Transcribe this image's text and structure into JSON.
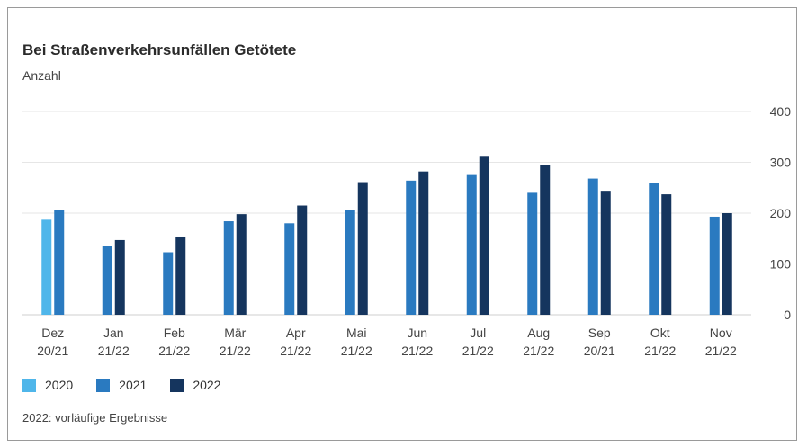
{
  "title": "Bei Straßenverkehrsunfällen Getötete",
  "subtitle": "Anzahl",
  "footnote": "2022: vorläufige Ergebnisse",
  "colors": {
    "2020": "#4fb6ea",
    "2021": "#2a7ac0",
    "2022": "#15355e"
  },
  "chart_data": {
    "type": "bar",
    "title": "Bei Straßenverkehrsunfällen Getötete",
    "ylabel": "Anzahl",
    "ylim": [
      0,
      400
    ],
    "yticks": [
      0,
      100,
      200,
      300,
      400
    ],
    "grid": true,
    "legend_position": "bottom-left",
    "categories": [
      [
        "Dez",
        "20/21"
      ],
      [
        "Jan",
        "21/22"
      ],
      [
        "Feb",
        "21/22"
      ],
      [
        "Mär",
        "21/22"
      ],
      [
        "Apr",
        "21/22"
      ],
      [
        "Mai",
        "21/22"
      ],
      [
        "Jun",
        "21/22"
      ],
      [
        "Jul",
        "21/22"
      ],
      [
        "Aug",
        "21/22"
      ],
      [
        "Sep",
        "20/21"
      ],
      [
        "Okt",
        "21/22"
      ],
      [
        "Nov",
        "21/22"
      ]
    ],
    "series": [
      {
        "name": "2020",
        "values": [
          187,
          null,
          null,
          null,
          null,
          null,
          null,
          null,
          null,
          null,
          null,
          null
        ]
      },
      {
        "name": "2021",
        "values": [
          206,
          135,
          123,
          184,
          180,
          206,
          264,
          275,
          240,
          268,
          259,
          193
        ]
      },
      {
        "name": "2022",
        "values": [
          null,
          147,
          154,
          198,
          215,
          261,
          282,
          311,
          295,
          244,
          237,
          200
        ]
      }
    ]
  }
}
